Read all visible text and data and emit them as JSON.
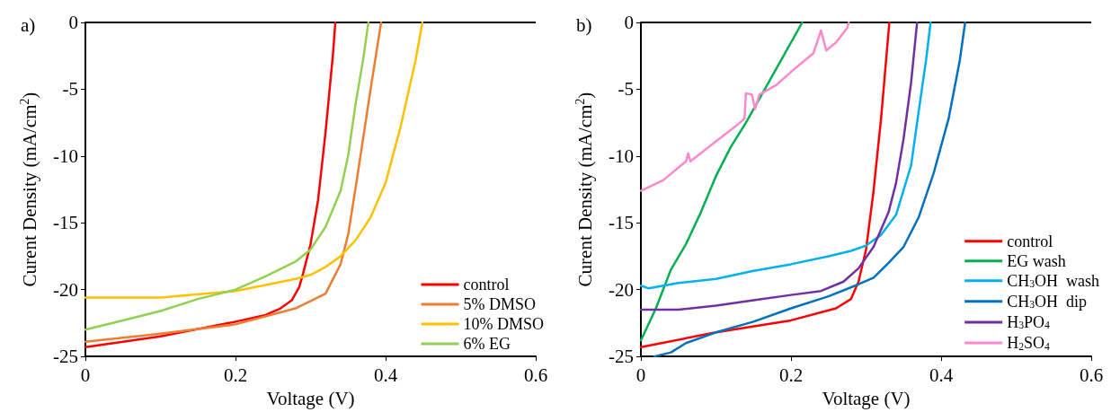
{
  "chart_data": [
    {
      "type": "line",
      "title": "a)",
      "xlabel": "Voltage (V)",
      "ylabel": "Curent Density (mA/cm$^{2}$)",
      "xlim": [
        0,
        0.6
      ],
      "xticks": [
        0,
        0.2,
        0.4,
        0.6
      ],
      "ylim": [
        -25,
        0
      ],
      "yticks": [
        -25,
        -20,
        -15,
        -10,
        -5,
        0
      ],
      "grid": false,
      "legend": "bottom right",
      "marker": "none",
      "line_style": "solid",
      "series": [
        {
          "name": "control",
          "color": "#ff0000",
          "x": [
            0,
            0.1,
            0.2,
            0.24,
            0.26,
            0.275,
            0.285,
            0.29,
            0.3,
            0.31,
            0.32,
            0.33,
            0.333
          ],
          "values": [
            -24.3,
            -23.5,
            -22.4,
            -21.9,
            -21.4,
            -20.8,
            -19.8,
            -18.8,
            -16.6,
            -13.3,
            -8.2,
            -2.3,
            0
          ]
        },
        {
          "name": "5% DMSO",
          "color": "#ed7d31",
          "x": [
            0,
            0.1,
            0.2,
            0.28,
            0.32,
            0.34,
            0.35,
            0.36,
            0.37,
            0.38,
            0.394
          ],
          "values": [
            -23.9,
            -23.3,
            -22.6,
            -21.4,
            -20.3,
            -18.1,
            -15.9,
            -12.4,
            -8.7,
            -5.0,
            0
          ]
        },
        {
          "name": "10% DMSO",
          "color": "#ffc000",
          "x": [
            0,
            0.1,
            0.2,
            0.28,
            0.3,
            0.32,
            0.34,
            0.36,
            0.38,
            0.4,
            0.42,
            0.44,
            0.449
          ],
          "values": [
            -20.6,
            -20.6,
            -20.1,
            -19.2,
            -18.9,
            -18.3,
            -17.5,
            -16.3,
            -14.6,
            -12.0,
            -7.8,
            -2.8,
            0
          ]
        },
        {
          "name": "6% EG",
          "color": "#92d050",
          "x": [
            0,
            0.05,
            0.1,
            0.15,
            0.2,
            0.24,
            0.28,
            0.3,
            0.32,
            0.34,
            0.35,
            0.36,
            0.37,
            0.377
          ],
          "values": [
            -23.0,
            -22.3,
            -21.6,
            -20.7,
            -20.0,
            -19.0,
            -17.9,
            -17.0,
            -15.3,
            -12.6,
            -10.0,
            -6.1,
            -2.8,
            0
          ]
        }
      ]
    },
    {
      "type": "line",
      "title": "b)",
      "xlabel": "Voltage (V)",
      "ylabel": "Curent Density (mA/cm$^{2}$)",
      "xlim": [
        0,
        0.6
      ],
      "xticks": [
        0,
        0.2,
        0.4,
        0.6
      ],
      "ylim": [
        -25,
        0
      ],
      "yticks": [
        -25,
        -20,
        -15,
        -10,
        -5,
        0
      ],
      "grid": false,
      "legend": "bottom right",
      "marker": "none",
      "line_style": "solid",
      "series": [
        {
          "name": "control",
          "color": "#ff0000",
          "x": [
            0,
            0.1,
            0.2,
            0.26,
            0.28,
            0.29,
            0.3,
            0.31,
            0.32,
            0.331
          ],
          "values": [
            -24.3,
            -23.2,
            -22.3,
            -21.4,
            -20.7,
            -19.4,
            -17.0,
            -12.6,
            -7.2,
            0
          ]
        },
        {
          "name": "EG wash",
          "color": "#00b050",
          "x": [
            0,
            0.02,
            0.04,
            0.06,
            0.08,
            0.1,
            0.12,
            0.14,
            0.16,
            0.18,
            0.215
          ],
          "values": [
            -23.8,
            -21.4,
            -18.5,
            -16.6,
            -14.2,
            -11.5,
            -9.3,
            -7.5,
            -5.5,
            -3.5,
            0
          ]
        },
        {
          "name": "CH$_{3}$OH  wash",
          "color": "#00b0f0",
          "x": [
            0,
            0.01,
            0.05,
            0.1,
            0.15,
            0.2,
            0.25,
            0.28,
            0.3,
            0.32,
            0.34,
            0.36,
            0.37,
            0.38,
            0.386
          ],
          "values": [
            -19.7,
            -19.9,
            -19.5,
            -19.2,
            -18.6,
            -18.1,
            -17.5,
            -17.1,
            -16.7,
            -15.9,
            -14.4,
            -10.7,
            -6.7,
            -2.8,
            0
          ]
        },
        {
          "name": "CH$_{3}$OH  dip",
          "color": "#0070c0",
          "x": [
            0.018,
            0.04,
            0.06,
            0.1,
            0.15,
            0.2,
            0.25,
            0.29,
            0.31,
            0.33,
            0.35,
            0.37,
            0.39,
            0.41,
            0.425,
            0.432
          ],
          "values": [
            -25,
            -24.7,
            -24.0,
            -23.2,
            -22.4,
            -21.4,
            -20.5,
            -19.6,
            -19.1,
            -18.0,
            -16.8,
            -14.6,
            -11.3,
            -7.2,
            -2.8,
            0
          ]
        },
        {
          "name": "H$_{3}$PO$_{4}$",
          "color": "#7030a0",
          "x": [
            0,
            0.05,
            0.1,
            0.15,
            0.2,
            0.24,
            0.27,
            0.29,
            0.31,
            0.33,
            0.34,
            0.35,
            0.36,
            0.368
          ],
          "values": [
            -21.5,
            -21.5,
            -21.2,
            -20.8,
            -20.4,
            -20.1,
            -19.4,
            -18.4,
            -16.8,
            -14.2,
            -12.0,
            -8.7,
            -4.5,
            0
          ]
        },
        {
          "name": "H$_{2}$SO$_{4}$",
          "color": "#ff88cc",
          "x": [
            0,
            0.03,
            0.06,
            0.063,
            0.066,
            0.1,
            0.13,
            0.138,
            0.14,
            0.148,
            0.152,
            0.158,
            0.18,
            0.2,
            0.23,
            0.24,
            0.247,
            0.26,
            0.275,
            0.277
          ],
          "values": [
            -12.6,
            -11.8,
            -10.4,
            -9.8,
            -10.4,
            -8.9,
            -7.6,
            -7.2,
            -5.3,
            -5.4,
            -6.5,
            -5.4,
            -4.7,
            -3.7,
            -2.3,
            -0.6,
            -2.1,
            -1.5,
            -0.4,
            0
          ]
        }
      ]
    }
  ]
}
